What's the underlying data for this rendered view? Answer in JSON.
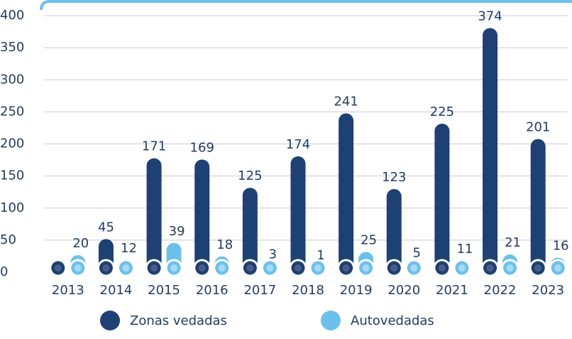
{
  "chart_data": {
    "type": "bar",
    "categories": [
      "2013",
      "2014",
      "2015",
      "2016",
      "2017",
      "2018",
      "2019",
      "2020",
      "2021",
      "2022",
      "2023"
    ],
    "series": [
      {
        "name": "Zonas vedadas",
        "color": "#1e4072",
        "values": [
          null,
          45,
          171,
          169,
          125,
          174,
          241,
          123,
          225,
          374,
          201
        ]
      },
      {
        "name": "Autovedadas",
        "color": "#6cc1ec",
        "values": [
          20,
          12,
          39,
          18,
          3,
          1,
          25,
          5,
          11,
          21,
          16
        ]
      }
    ],
    "ylim": [
      0,
      400
    ],
    "yticks": [
      0,
      50,
      100,
      150,
      200,
      250,
      300,
      350,
      400
    ],
    "grid": true,
    "legend": "bottom"
  }
}
